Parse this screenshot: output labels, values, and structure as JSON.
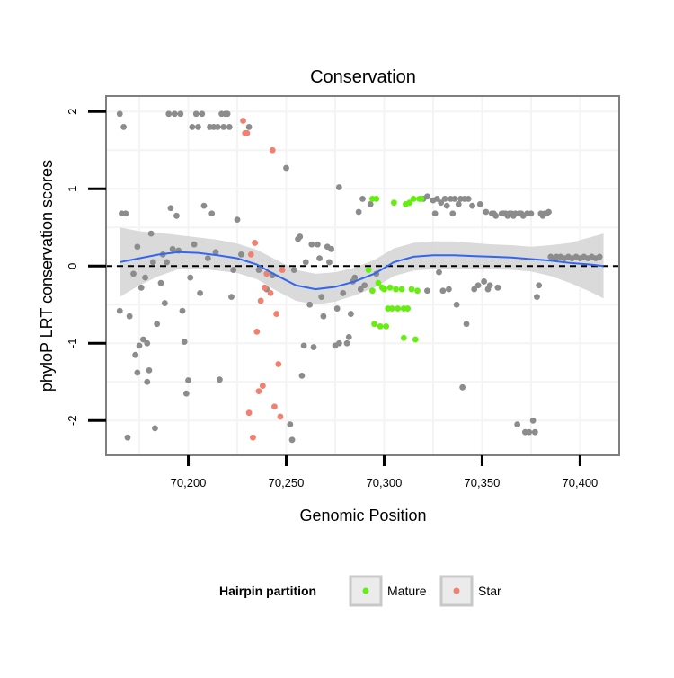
{
  "chart_data": {
    "type": "scatter",
    "title": "Conservation",
    "xlabel": "Genomic Position",
    "ylabel": "phyloP LRT conservation scores",
    "xlim": [
      70158,
      70420
    ],
    "ylim": [
      -2.45,
      2.2
    ],
    "x_ticks": [
      {
        "value": 70200,
        "label": "70,200"
      },
      {
        "value": 70250,
        "label": "70,250"
      },
      {
        "value": 70300,
        "label": "70,300"
      },
      {
        "value": 70350,
        "label": "70,350"
      },
      {
        "value": 70400,
        "label": "70,400"
      }
    ],
    "y_ticks": [
      {
        "value": 2,
        "label": "2"
      },
      {
        "value": 1,
        "label": "1"
      },
      {
        "value": 0,
        "label": "0"
      },
      {
        "value": -1,
        "label": "-1"
      },
      {
        "value": -2,
        "label": "-2"
      }
    ],
    "reference_line": {
      "y": 0,
      "style": "dashed",
      "color": "#000000"
    },
    "colors": {
      "other": "#8c8c8c",
      "Mature": "#66ee11",
      "Star": "#f08070",
      "smooth": "#3366ee",
      "band": "#d3d3d3"
    },
    "legend": {
      "title": "Hairpin partition",
      "position": "bottom",
      "entries": [
        "Mature",
        "Star"
      ]
    },
    "series": [
      {
        "name": "Other",
        "points": [
          [
            70165,
            1.97
          ],
          [
            70166,
            0.68
          ],
          [
            70167,
            1.8
          ],
          [
            70168,
            0.68
          ],
          [
            70165,
            -0.58
          ],
          [
            70169,
            -2.22
          ],
          [
            70170,
            -0.65
          ],
          [
            70172,
            -0.1
          ],
          [
            70173,
            -1.15
          ],
          [
            70174,
            0.25
          ],
          [
            70174,
            -1.38
          ],
          [
            70175,
            -1.03
          ],
          [
            70176,
            -0.28
          ],
          [
            70177,
            -0.95
          ],
          [
            70178,
            -0.15
          ],
          [
            70179,
            -1.0
          ],
          [
            70179,
            -1.5
          ],
          [
            70180,
            -1.35
          ],
          [
            70181,
            0.42
          ],
          [
            70182,
            0.05
          ],
          [
            70183,
            -2.1
          ],
          [
            70184,
            -0.75
          ],
          [
            70186,
            -0.22
          ],
          [
            70187,
            0.15
          ],
          [
            70188,
            -0.48
          ],
          [
            70189,
            0.05
          ],
          [
            70190,
            1.97
          ],
          [
            70191,
            0.75
          ],
          [
            70192,
            0.22
          ],
          [
            70193,
            1.97
          ],
          [
            70194,
            0.65
          ],
          [
            70195,
            0.2
          ],
          [
            70196,
            1.97
          ],
          [
            70197,
            -0.58
          ],
          [
            70198,
            -0.98
          ],
          [
            70199,
            -1.65
          ],
          [
            70200,
            -1.48
          ],
          [
            70201,
            -0.15
          ],
          [
            70202,
            1.8
          ],
          [
            70203,
            0.28
          ],
          [
            70204,
            1.97
          ],
          [
            70205,
            1.8
          ],
          [
            70206,
            -0.35
          ],
          [
            70207,
            1.97
          ],
          [
            70208,
            0.78
          ],
          [
            70210,
            0.1
          ],
          [
            70211,
            1.8
          ],
          [
            70212,
            0.68
          ],
          [
            70213,
            1.8
          ],
          [
            70214,
            0.18
          ],
          [
            70215,
            1.8
          ],
          [
            70216,
            -1.47
          ],
          [
            70217,
            1.97
          ],
          [
            70218,
            1.8
          ],
          [
            70219,
            1.97
          ],
          [
            70220,
            1.97
          ],
          [
            70221,
            1.8
          ],
          [
            70222,
            -0.4
          ],
          [
            70223,
            -0.05
          ],
          [
            70225,
            0.6
          ],
          [
            70227,
            0.15
          ],
          [
            70231,
            1.8
          ],
          [
            70236,
            -0.05
          ],
          [
            70240,
            -0.3
          ],
          [
            70243,
            -0.12
          ],
          [
            70250,
            1.27
          ],
          [
            70252,
            -2.05
          ],
          [
            70253,
            -2.25
          ],
          [
            70254,
            -0.05
          ],
          [
            70256,
            0.35
          ],
          [
            70257,
            0.38
          ],
          [
            70258,
            -1.42
          ],
          [
            70259,
            -1.03
          ],
          [
            70260,
            0.05
          ],
          [
            70262,
            -0.5
          ],
          [
            70263,
            0.28
          ],
          [
            70264,
            -1.05
          ],
          [
            70266,
            0.28
          ],
          [
            70267,
            0.1
          ],
          [
            70268,
            -0.4
          ],
          [
            70269,
            -0.65
          ],
          [
            70271,
            0.25
          ],
          [
            70272,
            0.05
          ],
          [
            70273,
            0.22
          ],
          [
            70275,
            -1.03
          ],
          [
            70276,
            -0.55
          ],
          [
            70277,
            -1.0
          ],
          [
            70277,
            1.02
          ],
          [
            70279,
            -0.35
          ],
          [
            70281,
            -1.0
          ],
          [
            70282,
            -0.92
          ],
          [
            70283,
            -0.62
          ],
          [
            70284,
            -0.2
          ],
          [
            70285,
            -0.15
          ],
          [
            70287,
            0.7
          ],
          [
            70288,
            -0.3
          ],
          [
            70289,
            0.87
          ],
          [
            70290,
            -0.25
          ],
          [
            70293,
            0.8
          ],
          [
            70296,
            -0.1
          ],
          [
            70320,
            0.87
          ],
          [
            70322,
            0.9
          ],
          [
            70322,
            -0.32
          ],
          [
            70325,
            0.85
          ],
          [
            70326,
            0.68
          ],
          [
            70327,
            0.87
          ],
          [
            70328,
            -0.08
          ],
          [
            70329,
            0.82
          ],
          [
            70330,
            -0.32
          ],
          [
            70331,
            0.87
          ],
          [
            70332,
            0.78
          ],
          [
            70333,
            -0.3
          ],
          [
            70334,
            0.87
          ],
          [
            70335,
            0.68
          ],
          [
            70336,
            0.87
          ],
          [
            70337,
            -0.5
          ],
          [
            70338,
            0.8
          ],
          [
            70339,
            0.87
          ],
          [
            70340,
            -1.57
          ],
          [
            70341,
            0.87
          ],
          [
            70342,
            -0.75
          ],
          [
            70343,
            0.87
          ],
          [
            70345,
            0.78
          ],
          [
            70346,
            -0.3
          ],
          [
            70348,
            -0.25
          ],
          [
            70349,
            0.8
          ],
          [
            70351,
            -0.2
          ],
          [
            70352,
            0.7
          ],
          [
            70353,
            -0.3
          ],
          [
            70354,
            -0.25
          ],
          [
            70355,
            0.68
          ],
          [
            70356,
            0.68
          ],
          [
            70357,
            0.65
          ],
          [
            70358,
            -0.28
          ],
          [
            70360,
            0.68
          ],
          [
            70361,
            0.68
          ],
          [
            70362,
            0.68
          ],
          [
            70363,
            0.65
          ],
          [
            70364,
            0.68
          ],
          [
            70365,
            0.68
          ],
          [
            70366,
            0.65
          ],
          [
            70367,
            0.68
          ],
          [
            70368,
            -2.05
          ],
          [
            70369,
            0.68
          ],
          [
            70370,
            0.68
          ],
          [
            70371,
            0.65
          ],
          [
            70372,
            -2.15
          ],
          [
            70373,
            0.68
          ],
          [
            70374,
            -2.15
          ],
          [
            70375,
            0.68
          ],
          [
            70376,
            -2.0
          ],
          [
            70377,
            -2.15
          ],
          [
            70378,
            -0.4
          ],
          [
            70379,
            -0.25
          ],
          [
            70380,
            0.68
          ],
          [
            70381,
            0.65
          ],
          [
            70382,
            0.68
          ],
          [
            70383,
            0.68
          ],
          [
            70384,
            0.7
          ],
          [
            70385,
            0.12
          ],
          [
            70386,
            0.1
          ],
          [
            70388,
            0.12
          ],
          [
            70390,
            0.12
          ],
          [
            70392,
            0.1
          ],
          [
            70394,
            0.12
          ],
          [
            70396,
            0.1
          ],
          [
            70398,
            0.12
          ],
          [
            70400,
            0.1
          ],
          [
            70402,
            0.12
          ],
          [
            70404,
            0.1
          ],
          [
            70406,
            0.12
          ],
          [
            70408,
            0.1
          ],
          [
            70410,
            0.12
          ]
        ]
      },
      {
        "name": "Mature",
        "points": [
          [
            70292,
            -0.05
          ],
          [
            70294,
            0.87
          ],
          [
            70294,
            -0.32
          ],
          [
            70295,
            -0.75
          ],
          [
            70296,
            0.87
          ],
          [
            70297,
            -0.22
          ],
          [
            70298,
            -0.78
          ],
          [
            70299,
            -0.28
          ],
          [
            70300,
            -0.3
          ],
          [
            70301,
            -0.78
          ],
          [
            70302,
            -0.55
          ],
          [
            70303,
            -0.28
          ],
          [
            70304,
            -0.55
          ],
          [
            70305,
            0.82
          ],
          [
            70306,
            -0.3
          ],
          [
            70307,
            -0.55
          ],
          [
            70309,
            -0.3
          ],
          [
            70310,
            -0.55
          ],
          [
            70310,
            -0.93
          ],
          [
            70311,
            0.8
          ],
          [
            70312,
            -0.55
          ],
          [
            70313,
            0.82
          ],
          [
            70314,
            -0.3
          ],
          [
            70315,
            0.87
          ],
          [
            70316,
            -0.95
          ],
          [
            70317,
            -0.32
          ],
          [
            70318,
            0.87
          ],
          [
            70319,
            0.87
          ]
        ]
      },
      {
        "name": "Star",
        "points": [
          [
            70228,
            1.88
          ],
          [
            70229,
            1.72
          ],
          [
            70230,
            1.72
          ],
          [
            70231,
            -1.9
          ],
          [
            70232,
            0.15
          ],
          [
            70233,
            -2.22
          ],
          [
            70234,
            0.3
          ],
          [
            70235,
            -0.85
          ],
          [
            70236,
            -1.62
          ],
          [
            70237,
            -0.45
          ],
          [
            70238,
            -1.55
          ],
          [
            70239,
            -0.28
          ],
          [
            70240,
            -0.1
          ],
          [
            70242,
            -0.35
          ],
          [
            70243,
            1.5
          ],
          [
            70244,
            -1.82
          ],
          [
            70245,
            -0.62
          ],
          [
            70246,
            -1.27
          ],
          [
            70247,
            -1.95
          ],
          [
            70248,
            -0.05
          ]
        ]
      }
    ],
    "smooth": [
      [
        70165,
        0.05
      ],
      [
        70175,
        0.1
      ],
      [
        70185,
        0.15
      ],
      [
        70195,
        0.18
      ],
      [
        70205,
        0.17
      ],
      [
        70215,
        0.14
      ],
      [
        70225,
        0.1
      ],
      [
        70235,
        0.02
      ],
      [
        70245,
        -0.12
      ],
      [
        70255,
        -0.25
      ],
      [
        70265,
        -0.3
      ],
      [
        70275,
        -0.27
      ],
      [
        70285,
        -0.2
      ],
      [
        70295,
        -0.1
      ],
      [
        70305,
        0.05
      ],
      [
        70315,
        0.12
      ],
      [
        70325,
        0.14
      ],
      [
        70335,
        0.14
      ],
      [
        70345,
        0.13
      ],
      [
        70355,
        0.12
      ],
      [
        70365,
        0.11
      ],
      [
        70375,
        0.09
      ],
      [
        70385,
        0.07
      ],
      [
        70395,
        0.04
      ],
      [
        70405,
        0.02
      ],
      [
        70412,
        0.0
      ]
    ],
    "band_halfwidth": [
      0.45,
      0.35,
      0.28,
      0.22,
      0.2,
      0.2,
      0.19,
      0.19,
      0.2,
      0.2,
      0.2,
      0.19,
      0.18,
      0.18,
      0.18,
      0.18,
      0.18,
      0.18,
      0.17,
      0.16,
      0.16,
      0.16,
      0.2,
      0.26,
      0.35,
      0.42
    ]
  }
}
